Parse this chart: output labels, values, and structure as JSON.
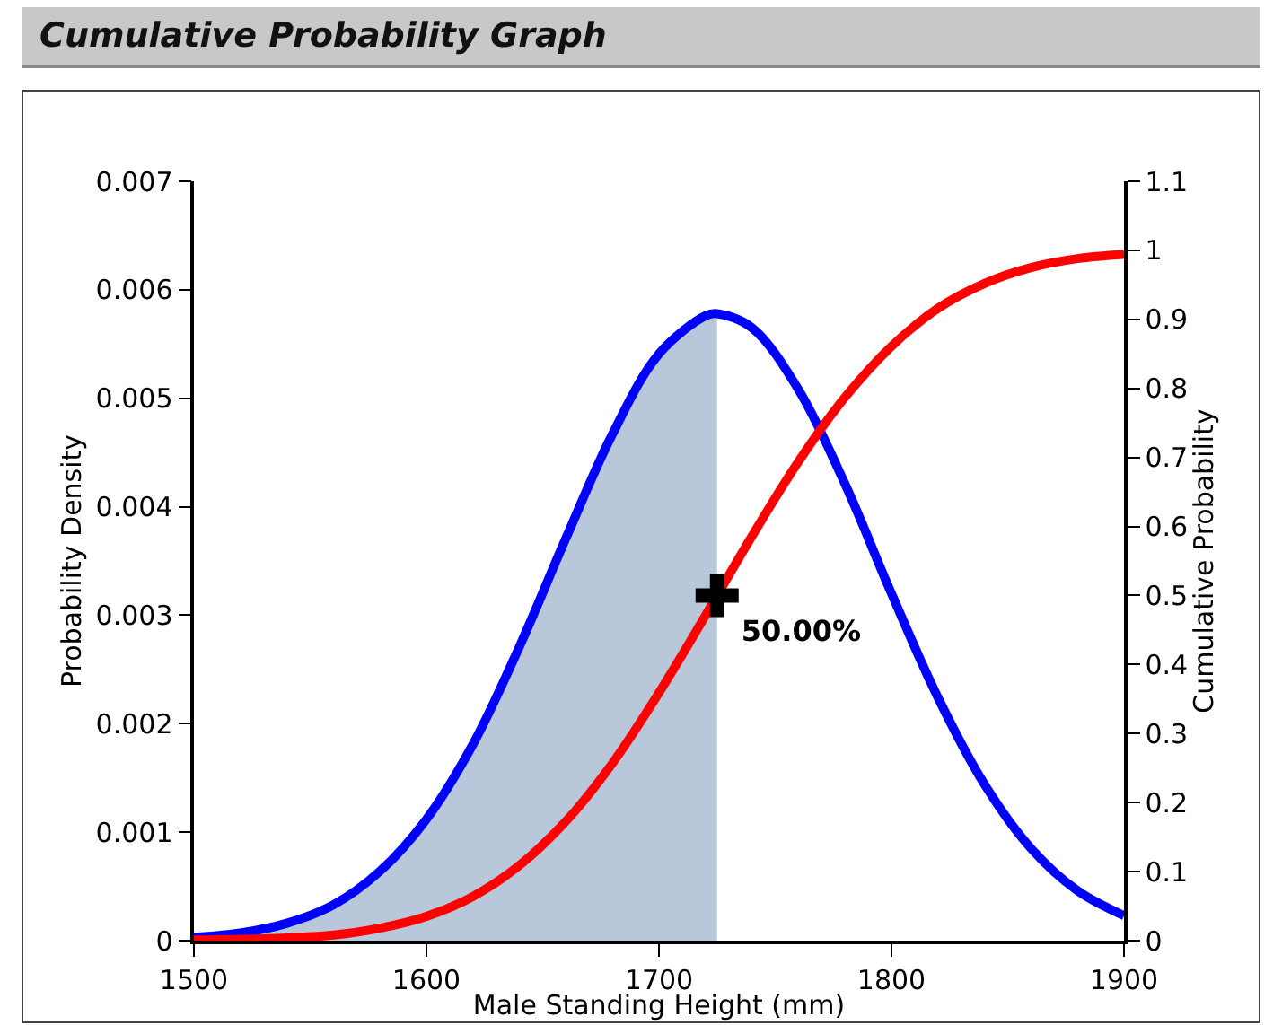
{
  "chart_data": {
    "type": "line",
    "title": "Cumulative Probability Graph",
    "xlabel": "Male Standing Height (mm)",
    "ylabel": "Probability Density",
    "y2label": "Cumulative Probability",
    "xlim": [
      1500,
      1900
    ],
    "xticks": [
      1500,
      1600,
      1700,
      1800,
      1900
    ],
    "ylim": [
      0,
      0.007
    ],
    "yticks": [
      0,
      0.001,
      0.002,
      0.003,
      0.004,
      0.005,
      0.006,
      0.007
    ],
    "y2lim": [
      0,
      1.1
    ],
    "y2ticks": [
      0,
      0.1,
      0.2,
      0.3,
      0.4,
      0.5,
      0.6,
      0.7,
      0.8,
      0.9,
      1,
      1.1
    ],
    "grid": false,
    "series": [
      {
        "type": "area",
        "color": "#b8c8da",
        "x": [
          1500,
          1520,
          1540,
          1560,
          1580,
          1600,
          1620,
          1640,
          1660,
          1680,
          1700,
          1720,
          1725
        ],
        "values": [
          3e-05,
          7e-05,
          0.00016,
          0.00033,
          0.00064,
          0.00112,
          0.00181,
          0.00271,
          0.00371,
          0.00467,
          0.00541,
          0.00576,
          0.00578
        ]
      },
      {
        "color": "#0000ff",
        "x": [
          1500,
          1520,
          1540,
          1560,
          1580,
          1600,
          1620,
          1640,
          1660,
          1680,
          1700,
          1720,
          1725,
          1740,
          1760,
          1780,
          1800,
          1820,
          1840,
          1860,
          1880,
          1900
        ],
        "values": [
          3e-05,
          7e-05,
          0.00016,
          0.00033,
          0.00064,
          0.00112,
          0.00181,
          0.00271,
          0.00371,
          0.00467,
          0.00541,
          0.00576,
          0.00578,
          0.00565,
          0.00508,
          0.00421,
          0.0032,
          0.00224,
          0.00144,
          0.00085,
          0.00046,
          0.00023
        ]
      },
      {
        "color": "#ff0000",
        "axis": "y2",
        "x": [
          1500,
          1520,
          1540,
          1560,
          1580,
          1600,
          1620,
          1640,
          1660,
          1680,
          1700,
          1720,
          1725,
          1740,
          1760,
          1780,
          1800,
          1820,
          1840,
          1860,
          1880,
          1900
        ],
        "values": [
          0.001,
          0.002,
          0.004,
          0.008,
          0.018,
          0.035,
          0.064,
          0.109,
          0.173,
          0.257,
          0.359,
          0.471,
          0.5,
          0.586,
          0.694,
          0.787,
          0.861,
          0.916,
          0.952,
          0.975,
          0.988,
          0.994
        ]
      },
      {
        "type": "scatter",
        "color": "#000000",
        "axis": "y2",
        "marker": "cross",
        "x": [
          1725
        ],
        "values": [
          0.5
        ],
        "value_labels": [
          "50.00%"
        ]
      }
    ]
  }
}
